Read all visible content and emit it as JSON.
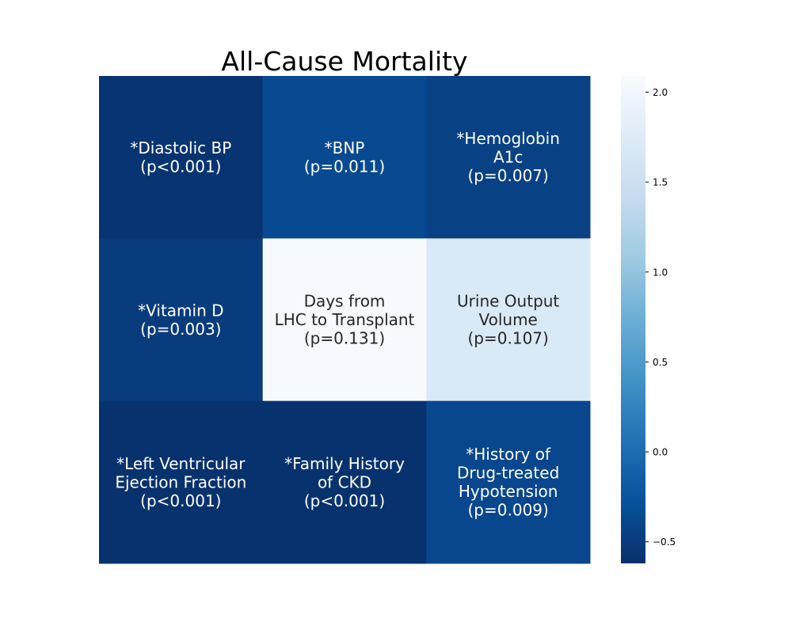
{
  "chart_data": {
    "type": "heatmap",
    "title": "All-Cause Mortality",
    "rows": 3,
    "cols": 3,
    "colormap": {
      "name": "Blues_r",
      "stops": [
        "#08306b",
        "#08519c",
        "#2171b5",
        "#4292c6",
        "#6baed6",
        "#9ecae1",
        "#c6dbef",
        "#deebf7",
        "#f7fbff"
      ]
    },
    "colorbar": {
      "vmin": -0.62,
      "vmax": 2.09,
      "ticks": [
        2.0,
        1.5,
        1.0,
        0.5,
        0.0,
        -0.5
      ],
      "tick_labels": [
        "2.0",
        "1.5",
        "1.0",
        "0.5",
        "0.0",
        "−0.5"
      ]
    },
    "cells": [
      {
        "row": 0,
        "col": 0,
        "value": -0.58,
        "lines": [
          "*Diastolic BP",
          "(p<0.001)"
        ]
      },
      {
        "row": 0,
        "col": 1,
        "value": -0.35,
        "lines": [
          "*BNP",
          "(p=0.011)"
        ]
      },
      {
        "row": 0,
        "col": 2,
        "value": -0.45,
        "lines": [
          "*Hemoglobin",
          "A1c",
          "(p=0.007)"
        ]
      },
      {
        "row": 1,
        "col": 0,
        "value": -0.5,
        "lines": [
          "*Vitamin D",
          "(p=0.003)"
        ]
      },
      {
        "row": 1,
        "col": 1,
        "value": 2.07,
        "lines": [
          "Days from",
          "LHC to Transplant",
          "(p=0.131)"
        ]
      },
      {
        "row": 1,
        "col": 2,
        "value": 1.7,
        "lines": [
          "Urine Output",
          "Volume",
          "(p=0.107)"
        ]
      },
      {
        "row": 2,
        "col": 0,
        "value": -0.6,
        "lines": [
          "*Left Ventricular",
          "Ejection Fraction",
          "(p<0.001)"
        ]
      },
      {
        "row": 2,
        "col": 1,
        "value": -0.6,
        "lines": [
          "*Family History",
          "of CKD",
          "(p<0.001)"
        ]
      },
      {
        "row": 2,
        "col": 2,
        "value": -0.38,
        "lines": [
          "*History of",
          "Drug-treated",
          "Hypotension",
          "(p=0.009)"
        ]
      }
    ]
  }
}
